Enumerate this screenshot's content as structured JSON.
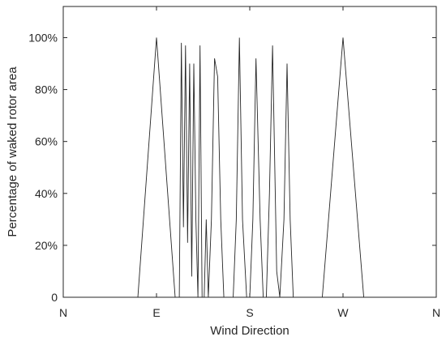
{
  "chart_data": {
    "type": "line",
    "title": "",
    "xlabel": "Wind Direction",
    "ylabel": "Percentage of waked rotor area",
    "x_tick_labels": [
      "N",
      "E",
      "S",
      "W",
      "N"
    ],
    "x_ticks_deg": [
      0,
      90,
      180,
      270,
      360
    ],
    "xlim": [
      0,
      360
    ],
    "ylim": [
      0,
      1.12
    ],
    "y_ticks": [
      0,
      0.2,
      0.4,
      0.6,
      0.8,
      1.0
    ],
    "y_tick_labels": [
      "0",
      "20%",
      "40%",
      "60%",
      "80%",
      "100%"
    ],
    "grid": false,
    "legend": "none",
    "line_color": "#262626",
    "series": [
      {
        "x_deg": [
          0,
          72,
          90,
          108,
          112,
          114,
          116,
          118,
          120,
          122,
          124,
          126,
          128,
          130,
          132,
          134,
          136,
          138,
          140,
          143,
          146,
          149,
          152,
          155,
          158,
          161,
          164,
          167,
          170,
          173,
          177,
          180,
          183,
          186,
          190,
          193,
          196,
          199,
          202,
          206,
          209,
          213,
          216,
          219,
          222,
          230,
          250,
          270,
          290,
          360
        ],
        "y": [
          0,
          0,
          1.0,
          0,
          0,
          0.98,
          0.27,
          0.97,
          0.21,
          0.9,
          0.08,
          0.9,
          0.3,
          0,
          0.97,
          0,
          0,
          0.3,
          0,
          0.3,
          0.92,
          0.85,
          0.3,
          0,
          0,
          0,
          0,
          0.3,
          1.0,
          0.3,
          0,
          0,
          0.3,
          0.92,
          0.3,
          0,
          0,
          0.4,
          0.97,
          0.1,
          0,
          0.3,
          0.9,
          0.3,
          0,
          0,
          0,
          1.0,
          0,
          0
        ]
      }
    ]
  }
}
